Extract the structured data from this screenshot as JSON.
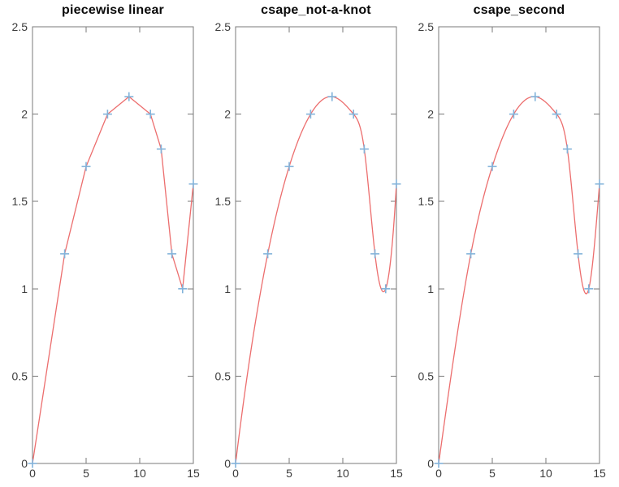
{
  "figure": {
    "background": "#ffffff",
    "colors": {
      "curve": "#ec6e6e",
      "marker": "#82b3da",
      "axis": "#787878",
      "tick_label": "#3c3c3c",
      "title": "#0a0a0a"
    }
  },
  "chart_data": [
    {
      "type": "line",
      "title": "piecewise linear",
      "interpolation": "linear",
      "x": [
        0,
        3,
        5,
        7,
        9,
        11,
        12,
        13,
        14,
        15
      ],
      "y": [
        0,
        1.2,
        1.7,
        2.0,
        2.1,
        2.0,
        1.8,
        1.2,
        1.0,
        1.6
      ],
      "marker": "+",
      "xlim": [
        0,
        15
      ],
      "ylim": [
        0,
        2.5
      ],
      "xticks": [
        0,
        5,
        10,
        15
      ],
      "yticks": [
        0,
        0.5,
        1,
        1.5,
        2,
        2.5
      ],
      "grid": false,
      "legend": null
    },
    {
      "type": "line",
      "title": "csape_not-a-knot",
      "interpolation": "spline-not-a-knot",
      "x": [
        0,
        3,
        5,
        7,
        9,
        11,
        12,
        13,
        14,
        15
      ],
      "y": [
        0,
        1.2,
        1.7,
        2.0,
        2.1,
        2.0,
        1.8,
        1.2,
        1.0,
        1.6
      ],
      "marker": "+",
      "xlim": [
        0,
        15
      ],
      "ylim": [
        0,
        2.5
      ],
      "xticks": [
        0,
        5,
        10,
        15
      ],
      "yticks": [
        0,
        0.5,
        1,
        1.5,
        2,
        2.5
      ],
      "grid": false,
      "legend": null
    },
    {
      "type": "line",
      "title": "csape_second",
      "interpolation": "spline-second",
      "x": [
        0,
        3,
        5,
        7,
        9,
        11,
        12,
        13,
        14,
        15
      ],
      "y": [
        0,
        1.2,
        1.7,
        2.0,
        2.1,
        2.0,
        1.8,
        1.2,
        1.0,
        1.6
      ],
      "marker": "+",
      "xlim": [
        0,
        15
      ],
      "ylim": [
        0,
        2.5
      ],
      "xticks": [
        0,
        5,
        10,
        15
      ],
      "yticks": [
        0,
        0.5,
        1,
        1.5,
        2,
        2.5
      ],
      "grid": false,
      "legend": null
    }
  ]
}
